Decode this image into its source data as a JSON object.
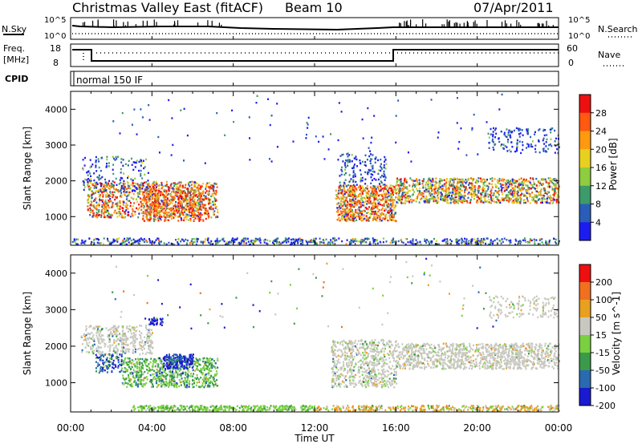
{
  "header": {
    "station": "Christmas Valley East (fitACF)",
    "beam": "Beam 10",
    "date": "07/Apr/2011"
  },
  "panels": {
    "nsky_label": "N.Sky",
    "nsearch_label": "N.Search",
    "left_top_tick": "10^5",
    "left_bot_tick": "10^0",
    "right_top_tick": "10^5",
    "right_bot_tick": "10^0",
    "freq_label_1": "Freq.",
    "freq_label_2": "[MHz]",
    "freq_tick_top": "18",
    "freq_tick_bot": "8",
    "nave_tick_top": "60",
    "nave_tick_bot": "0",
    "nave_label": "Nave",
    "cpid_label": "CPID",
    "cpid_value": "normal 150 IF"
  },
  "colors": {
    "power": [
      "#1c1cf0",
      "#2a5db8",
      "#3d9a6a",
      "#8fcc40",
      "#e8d020",
      "#ff9a10",
      "#ff5a10",
      "#ee1010"
    ],
    "velocity": [
      "#1a1ad0",
      "#2a6ab0",
      "#3a9a4a",
      "#7ad040",
      "#c8c8c0",
      "#e8a020",
      "#f07020",
      "#ee1010"
    ]
  },
  "chart_data": [
    {
      "type": "heatmap",
      "ylabel": "Slant Range [km]",
      "yticks": [
        "1000",
        "2000",
        "3000",
        "4000"
      ],
      "ylim": [
        200,
        4500
      ],
      "xticks": [
        "00:00",
        "04:00",
        "08:00",
        "12:00",
        "16:00",
        "20:00",
        "00:00"
      ],
      "colorbar_label": "Power [dB]",
      "colorbar_ticks": [
        "4",
        "8",
        "12",
        "16",
        "20",
        "24",
        "28"
      ]
    },
    {
      "type": "heatmap",
      "ylabel": "Slant Range [km]",
      "yticks": [
        "1000",
        "2000",
        "3000",
        "4000"
      ],
      "ylim": [
        200,
        4500
      ],
      "xlabel": "Time UT",
      "xticks": [
        "00:00",
        "04:00",
        "08:00",
        "12:00",
        "16:00",
        "20:00",
        "00:00"
      ],
      "colorbar_label": "Velocity [m s^-1]",
      "colorbar_ticks": [
        "200",
        "100",
        "50",
        "15",
        "-15",
        "-50",
        "-100",
        "-200"
      ]
    }
  ]
}
